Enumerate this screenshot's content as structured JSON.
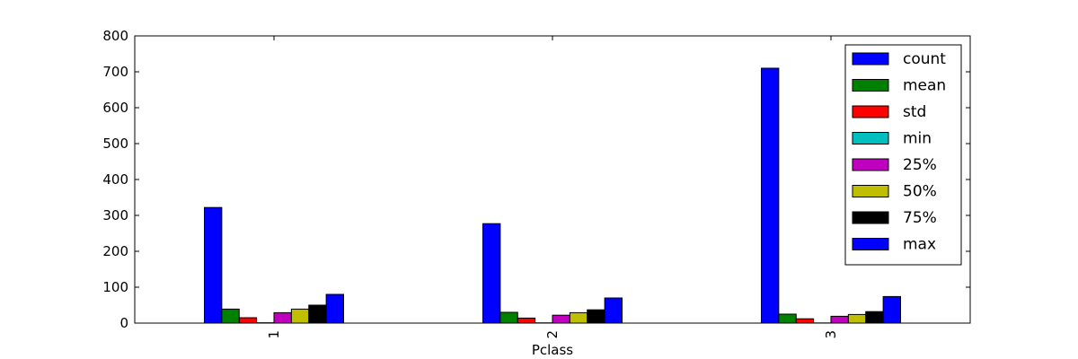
{
  "chart_data": {
    "type": "bar",
    "xlabel": "Pclass",
    "ylabel": "",
    "title": "",
    "categories": [
      "1",
      "2",
      "3"
    ],
    "ylim": [
      0,
      800
    ],
    "yticks": [
      0,
      100,
      200,
      300,
      400,
      500,
      600,
      700,
      800
    ],
    "grid": false,
    "legend": "upper right",
    "series": [
      {
        "name": "count",
        "color": "#0000ff",
        "values": [
          322,
          277,
          710
        ]
      },
      {
        "name": "mean",
        "color": "#008000",
        "values": [
          39,
          30,
          25
        ]
      },
      {
        "name": "std",
        "color": "#ff0000",
        "values": [
          15,
          14,
          12
        ]
      },
      {
        "name": "min",
        "color": "#00bfbf",
        "values": [
          0.92,
          0.67,
          0.42
        ]
      },
      {
        "name": "25%",
        "color": "#bf00bf",
        "values": [
          29,
          22,
          19
        ]
      },
      {
        "name": "50%",
        "color": "#bfbf00",
        "values": [
          39,
          29,
          24
        ]
      },
      {
        "name": "75%",
        "color": "#000000",
        "values": [
          50,
          37,
          32
        ]
      },
      {
        "name": "max",
        "color": "#0000ff",
        "values": [
          80,
          70,
          74
        ]
      }
    ]
  }
}
